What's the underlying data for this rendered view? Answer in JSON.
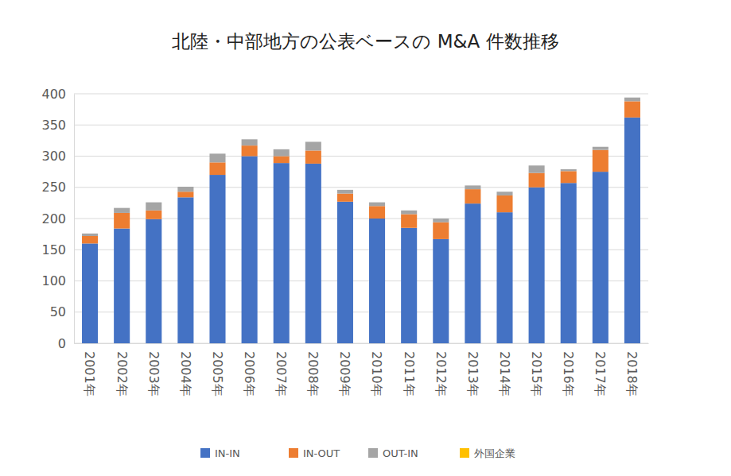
{
  "chart_data": {
    "type": "bar",
    "title": "北陸・中部地方の公表ベースの M&A 件数推移",
    "categories": [
      "2001年",
      "2002年",
      "2003年",
      "2004年",
      "2005年",
      "2006年",
      "2007年",
      "2008年",
      "2009年",
      "2010年",
      "2011年",
      "2012年",
      "2013年",
      "2014年",
      "2015年",
      "2016年",
      "2017年",
      "2018年"
    ],
    "series": [
      {
        "name": "IN-IN",
        "color": "#4472c4",
        "values": [
          160,
          184,
          199,
          234,
          270,
          300,
          289,
          288,
          227,
          200,
          185,
          167,
          224,
          210,
          250,
          257,
          275,
          362
        ]
      },
      {
        "name": "IN-OUT",
        "color": "#ed7d31",
        "values": [
          12,
          25,
          14,
          9,
          20,
          17,
          11,
          21,
          13,
          20,
          22,
          27,
          23,
          27,
          23,
          19,
          35,
          26
        ]
      },
      {
        "name": "OUT-IN",
        "color": "#a5a5a5",
        "values": [
          4,
          8,
          13,
          8,
          14,
          10,
          11,
          14,
          6,
          6,
          6,
          6,
          6,
          6,
          12,
          3,
          5,
          6
        ]
      },
      {
        "name": "外国企業",
        "color": "#ffc000",
        "values": [
          0,
          0,
          0,
          0,
          0,
          0,
          0,
          0,
          0,
          0,
          0,
          0,
          0,
          0,
          0,
          0,
          0,
          0
        ]
      }
    ],
    "ylim": [
      0,
      400
    ],
    "yticks": [
      0,
      50,
      100,
      150,
      200,
      250,
      300,
      350,
      400
    ],
    "stacked": true,
    "grid": true,
    "legend": "bottom"
  }
}
